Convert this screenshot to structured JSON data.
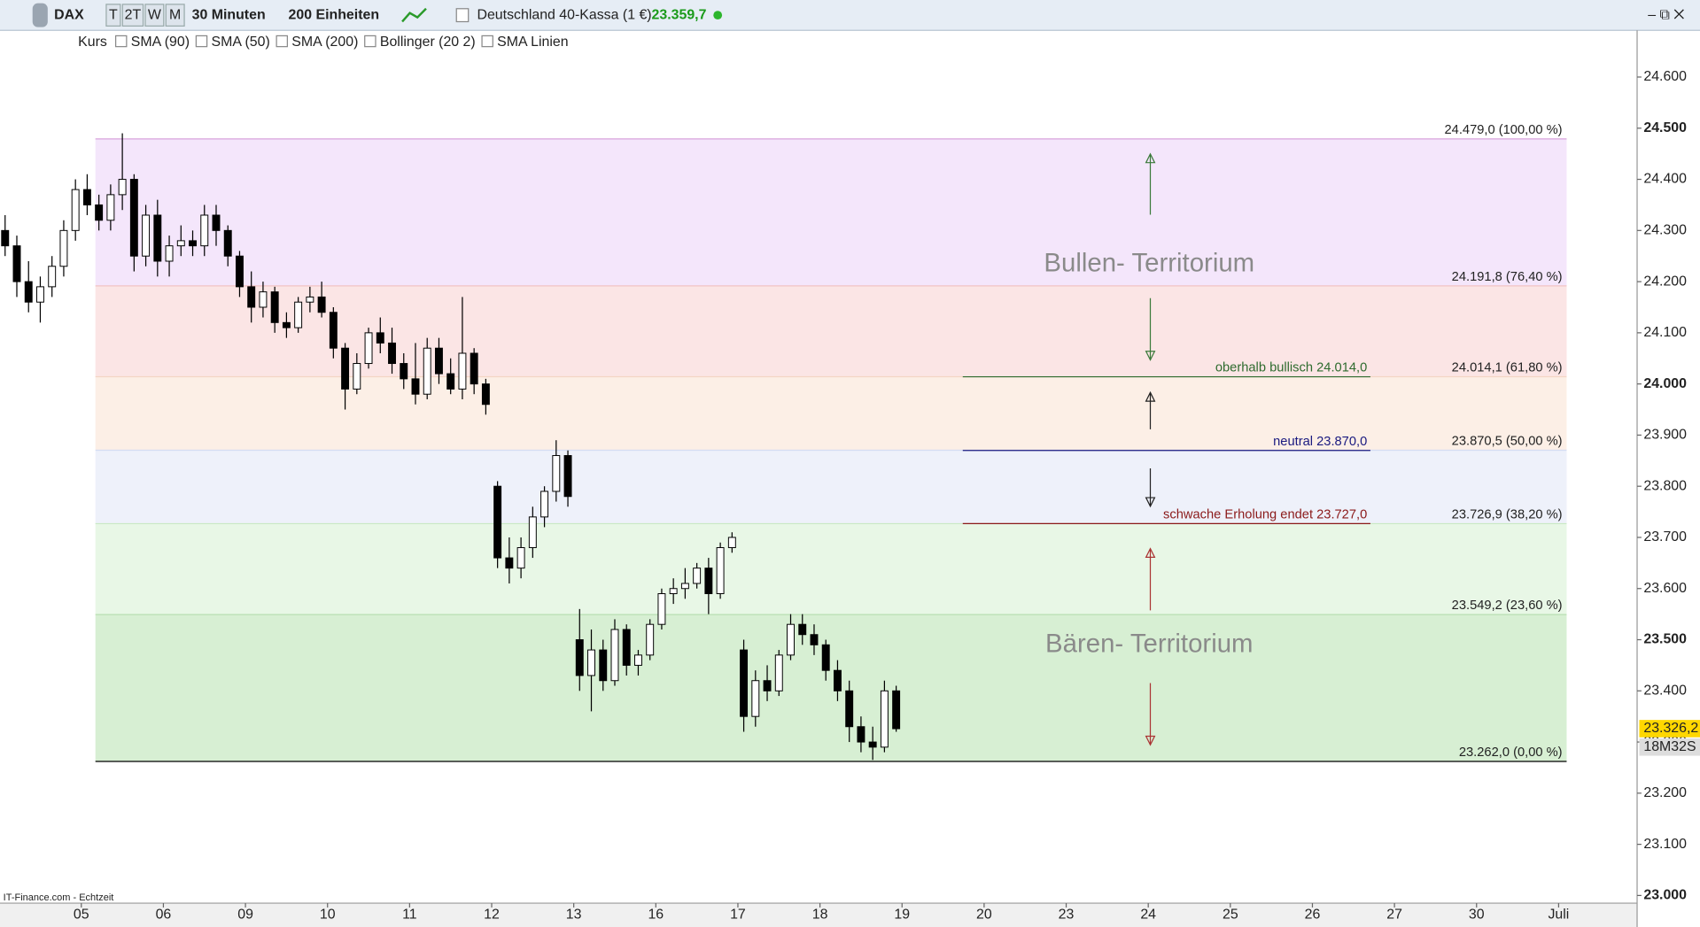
{
  "toolbar": {
    "symbol": "DAX",
    "periods": [
      "T",
      "2T",
      "W",
      "M"
    ],
    "interval": "30 Minuten",
    "units": "200 Einheiten",
    "instrument": "Deutschland 40-Kassa (1 €)",
    "price": "23.359,7",
    "indicators": [
      "Kurs",
      "SMA (90)",
      "SMA (50)",
      "SMA (200)",
      "Bollinger (20 2)",
      "SMA Linien"
    ]
  },
  "footer": "IT-Finance.com - Echtzeit",
  "chart_data": {
    "type": "candlestick",
    "categories": [
      null,
      "05",
      "06",
      "09",
      "10",
      "11",
      "12",
      "13",
      "16",
      "17",
      "18",
      "19",
      "20",
      "23",
      "24",
      "25",
      "26",
      "27",
      "30",
      "Juli"
    ],
    "candles": [
      [
        [
          24300,
          24330,
          24250,
          24270
        ],
        [
          24270,
          24290,
          24170,
          24200
        ],
        [
          24200,
          24240,
          24140,
          24160
        ],
        [
          24160,
          24210,
          24120,
          24190
        ],
        [
          24190,
          24250,
          24170,
          24230
        ],
        [
          24230,
          24320,
          24210,
          24300
        ],
        [
          24300,
          24400,
          24280,
          24380
        ]
      ],
      [
        [
          24380,
          24410,
          24330,
          24350
        ],
        [
          24350,
          24370,
          24300,
          24320
        ],
        [
          24320,
          24390,
          24300,
          24370
        ],
        [
          24370,
          24490,
          24340,
          24400
        ],
        [
          24400,
          24410,
          24220,
          24250
        ],
        [
          24250,
          24350,
          24230,
          24330
        ],
        [
          24330,
          24360,
          24210,
          24240
        ]
      ],
      [
        [
          24240,
          24290,
          24210,
          24270
        ],
        [
          24270,
          24310,
          24250,
          24280
        ],
        [
          24280,
          24300,
          24250,
          24270
        ],
        [
          24270,
          24350,
          24250,
          24330
        ],
        [
          24330,
          24350,
          24270,
          24300
        ],
        [
          24300,
          24310,
          24230,
          24250
        ],
        [
          24250,
          24260,
          24170,
          24190
        ]
      ],
      [
        [
          24190,
          24220,
          24120,
          24150
        ],
        [
          24150,
          24200,
          24130,
          24180
        ],
        [
          24180,
          24190,
          24100,
          24120
        ],
        [
          24120,
          24140,
          24090,
          24110
        ],
        [
          24110,
          24170,
          24100,
          24160
        ],
        [
          24160,
          24190,
          24140,
          24170
        ],
        [
          24170,
          24200,
          24130,
          24140
        ]
      ],
      [
        [
          24140,
          24150,
          24050,
          24070
        ],
        [
          24070,
          24080,
          23950,
          23990
        ],
        [
          23990,
          24060,
          23980,
          24040
        ],
        [
          24040,
          24110,
          24030,
          24100
        ],
        [
          24100,
          24130,
          24060,
          24080
        ],
        [
          24080,
          24110,
          24020,
          24040
        ],
        [
          24040,
          24060,
          23990,
          24010
        ]
      ],
      [
        [
          24010,
          24080,
          23960,
          23980
        ],
        [
          23980,
          24090,
          23970,
          24070
        ],
        [
          24070,
          24090,
          24000,
          24020
        ],
        [
          24020,
          24050,
          23980,
          23990
        ],
        [
          23990,
          24170,
          23970,
          24060
        ],
        [
          24060,
          24070,
          23980,
          24000
        ],
        [
          24000,
          24010,
          23940,
          23960
        ]
      ],
      [
        [
          23800,
          23810,
          23640,
          23660
        ],
        [
          23660,
          23700,
          23610,
          23640
        ],
        [
          23640,
          23700,
          23620,
          23680
        ],
        [
          23680,
          23760,
          23660,
          23740
        ],
        [
          23740,
          23800,
          23720,
          23790
        ],
        [
          23790,
          23890,
          23770,
          23860
        ],
        [
          23860,
          23870,
          23760,
          23780
        ]
      ],
      [
        [
          23500,
          23560,
          23400,
          23430
        ],
        [
          23430,
          23520,
          23360,
          23480
        ],
        [
          23480,
          23500,
          23400,
          23420
        ],
        [
          23420,
          23540,
          23410,
          23520
        ],
        [
          23520,
          23530,
          23430,
          23450
        ],
        [
          23450,
          23480,
          23430,
          23470
        ],
        [
          23470,
          23540,
          23460,
          23530
        ]
      ],
      [
        [
          23530,
          23600,
          23520,
          23590
        ],
        [
          23590,
          23620,
          23570,
          23600
        ],
        [
          23600,
          23640,
          23580,
          23610
        ],
        [
          23610,
          23650,
          23600,
          23640
        ],
        [
          23640,
          23660,
          23550,
          23590
        ],
        [
          23590,
          23690,
          23580,
          23680
        ],
        [
          23680,
          23710,
          23670,
          23700
        ]
      ],
      [
        [
          23480,
          23500,
          23320,
          23350
        ],
        [
          23350,
          23440,
          23330,
          23420
        ],
        [
          23420,
          23450,
          23380,
          23400
        ],
        [
          23400,
          23480,
          23390,
          23470
        ],
        [
          23470,
          23550,
          23460,
          23530
        ],
        [
          23530,
          23550,
          23490,
          23510
        ],
        [
          23510,
          23530,
          23470,
          23490
        ]
      ],
      [
        [
          23490,
          23500,
          23420,
          23440
        ],
        [
          23440,
          23460,
          23380,
          23400
        ],
        [
          23400,
          23420,
          23300,
          23330
        ],
        [
          23330,
          23350,
          23280,
          23300
        ],
        [
          23300,
          23330,
          23265,
          23290
        ],
        [
          23290,
          23420,
          23280,
          23400
        ],
        [
          23400,
          23410,
          23320,
          23326
        ]
      ],
      [],
      [],
      [],
      [],
      [],
      [],
      [],
      [],
      []
    ],
    "ylim": [
      22985,
      24687
    ],
    "yticks": [
      {
        "value": 23000,
        "label": "23.000"
      },
      {
        "value": 23100,
        "label": "23.100"
      },
      {
        "value": 23200,
        "label": "23.200"
      },
      {
        "value": 23300,
        "label": "23.300"
      },
      {
        "value": 23400,
        "label": "23.400"
      },
      {
        "value": 23500,
        "label": "23.500"
      },
      {
        "value": 23600,
        "label": "23.600"
      },
      {
        "value": 23700,
        "label": "23.700"
      },
      {
        "value": 23800,
        "label": "23.800"
      },
      {
        "value": 23900,
        "label": "23.900"
      },
      {
        "value": 24000,
        "label": "24.000"
      },
      {
        "value": 24100,
        "label": "24.100"
      },
      {
        "value": 24200,
        "label": "24.200"
      },
      {
        "value": 24300,
        "label": "24.300"
      },
      {
        "value": 24400,
        "label": "24.400"
      },
      {
        "value": 24500,
        "label": "24.500"
      },
      {
        "value": 24600,
        "label": "24.600"
      }
    ],
    "fib_levels": [
      {
        "value": 24479,
        "label": "24.479,0 (100,00 %)",
        "color": "#d9a3dc"
      },
      {
        "value": 24191.8,
        "label": "24.191,8 (76,40 %)",
        "color": "#f2c4c4"
      },
      {
        "value": 24014.1,
        "label": "24.014,1 (61,80 %)",
        "color": "#f4d6c4"
      },
      {
        "value": 23870.5,
        "label": "23.870,5 (50,00 %)",
        "color": "#d4dcf2"
      },
      {
        "value": 23726.9,
        "label": "23.726,9 (38,20 %)",
        "color": "#c9e9c4"
      },
      {
        "value": 23549.2,
        "label": "23.549,2 (23,60 %)",
        "color": "#b8dfb2"
      },
      {
        "value": 23262,
        "label": "23.262,0 (0,00 %)",
        "color": "#000000"
      }
    ],
    "band_colors": [
      "#f4e6fb",
      "#fbe5e5",
      "#fcefe6",
      "#eef1fa",
      "#e8f7e6",
      "#d7efd3"
    ],
    "lines": [
      {
        "value": 24014,
        "label": "oberhalb  bullisch  24.014,0",
        "color": "#2e6b2e"
      },
      {
        "value": 23870,
        "label": "neutral  23.870,0",
        "color": "#1a1a80"
      },
      {
        "value": 23727,
        "label": "schwache Erholung endet  23.727,0",
        "color": "#8b1a1a"
      }
    ],
    "annotations": [
      "Bullen- Territorium",
      "Bären- Territorium"
    ],
    "last_price": {
      "value": 23326.2,
      "label": "23.326,2"
    },
    "countdown": "18M32S"
  }
}
